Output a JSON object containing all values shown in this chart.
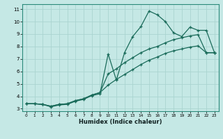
{
  "xlabel": "Humidex (Indice chaleur)",
  "bg_color": "#c5e8e5",
  "grid_color": "#aad4d0",
  "line_color": "#1a6b5a",
  "xlim": [
    -0.5,
    23.5
  ],
  "ylim": [
    2.8,
    11.4
  ],
  "xticks": [
    0,
    1,
    2,
    3,
    4,
    5,
    6,
    7,
    8,
    9,
    10,
    11,
    12,
    13,
    14,
    15,
    16,
    17,
    18,
    19,
    20,
    21,
    22,
    23
  ],
  "yticks": [
    3,
    4,
    5,
    6,
    7,
    8,
    9,
    10,
    11
  ],
  "line1_x": [
    0,
    1,
    2,
    3,
    4,
    5,
    6,
    7,
    8,
    9,
    10,
    11,
    12,
    13,
    14,
    15,
    16,
    17,
    18,
    19,
    20,
    21,
    22,
    23
  ],
  "line1_y": [
    3.4,
    3.4,
    3.35,
    3.15,
    3.3,
    3.35,
    3.6,
    3.75,
    4.05,
    4.2,
    7.4,
    5.3,
    7.5,
    8.8,
    9.6,
    10.85,
    10.55,
    10.0,
    9.1,
    8.8,
    9.55,
    9.3,
    9.3,
    7.5
  ],
  "line2_x": [
    0,
    1,
    2,
    3,
    4,
    5,
    6,
    7,
    8,
    9,
    10,
    11,
    12,
    13,
    14,
    15,
    16,
    17,
    18,
    19,
    20,
    21,
    22,
    23
  ],
  "line2_y": [
    3.4,
    3.4,
    3.35,
    3.2,
    3.35,
    3.4,
    3.65,
    3.8,
    4.1,
    4.3,
    5.8,
    6.2,
    6.7,
    7.1,
    7.5,
    7.8,
    8.0,
    8.3,
    8.55,
    8.7,
    8.85,
    8.95,
    7.5,
    7.5
  ],
  "line3_x": [
    0,
    1,
    2,
    3,
    4,
    5,
    6,
    7,
    8,
    9,
    10,
    11,
    12,
    13,
    14,
    15,
    16,
    17,
    18,
    19,
    20,
    21,
    22,
    23
  ],
  "line3_y": [
    3.4,
    3.4,
    3.35,
    3.2,
    3.35,
    3.4,
    3.65,
    3.8,
    4.1,
    4.3,
    4.9,
    5.35,
    5.75,
    6.15,
    6.55,
    6.9,
    7.15,
    7.45,
    7.65,
    7.8,
    7.95,
    8.05,
    7.5,
    7.5
  ]
}
